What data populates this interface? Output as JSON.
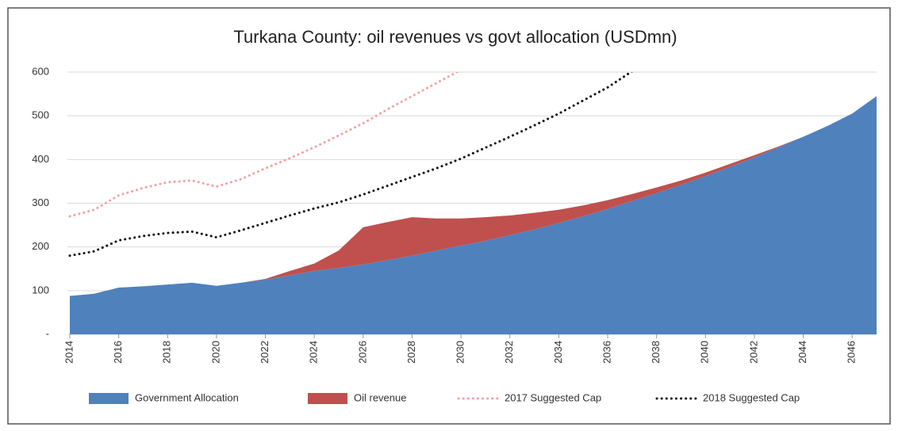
{
  "chart_data": {
    "type": "stacked_area_line",
    "title": "Turkana County: oil revenues vs govt allocation (USDmn)",
    "x": [
      2014,
      2015,
      2016,
      2017,
      2018,
      2019,
      2020,
      2021,
      2022,
      2023,
      2024,
      2025,
      2026,
      2027,
      2028,
      2029,
      2030,
      2031,
      2032,
      2033,
      2034,
      2035,
      2036,
      2037,
      2038,
      2039,
      2040,
      2041,
      2042,
      2043,
      2044,
      2045,
      2046,
      2047
    ],
    "xlim": [
      2014,
      2047
    ],
    "xticks": [
      2014,
      2016,
      2018,
      2020,
      2022,
      2024,
      2026,
      2028,
      2030,
      2032,
      2034,
      2036,
      2038,
      2040,
      2042,
      2044,
      2046
    ],
    "ylim": [
      0,
      600
    ],
    "yticks": [
      {
        "value": 0,
        "label": "-"
      },
      100,
      200,
      300,
      400,
      500,
      600
    ],
    "grid": true,
    "legend": "bottom",
    "series": [
      {
        "name": "Government Allocation",
        "kind": "area",
        "color": "#4f81bd",
        "values": [
          88,
          93,
          107,
          110,
          114,
          118,
          111,
          118,
          125,
          135,
          145,
          152,
          160,
          170,
          180,
          192,
          203,
          214,
          227,
          240,
          255,
          270,
          287,
          305,
          323,
          342,
          362,
          383,
          405,
          428,
          452,
          477,
          505,
          545
        ]
      },
      {
        "name": "Oil revenue",
        "kind": "area",
        "color": "#c0504d",
        "values": [
          0,
          0,
          0,
          0,
          0,
          0,
          0,
          0,
          2,
          10,
          17,
          40,
          85,
          87,
          88,
          73,
          62,
          54,
          45,
          38,
          30,
          25,
          20,
          16,
          13,
          10,
          8,
          7,
          5,
          2,
          0,
          0,
          0,
          0
        ]
      },
      {
        "name": "2017 Suggested Cap",
        "kind": "line",
        "color": "#f4a0a0",
        "values": [
          270,
          285,
          318,
          335,
          348,
          352,
          338,
          355,
          380,
          403,
          428,
          455,
          483,
          515,
          545,
          575,
          605,
          null,
          null,
          null,
          null,
          null,
          null,
          null,
          null,
          null,
          null,
          null,
          null,
          null,
          null,
          null,
          null,
          null
        ]
      },
      {
        "name": "2018 Suggested Cap",
        "kind": "line",
        "color": "#111111",
        "values": [
          180,
          190,
          215,
          225,
          232,
          235,
          222,
          238,
          255,
          272,
          288,
          302,
          320,
          340,
          360,
          380,
          402,
          427,
          452,
          478,
          505,
          535,
          565,
          602,
          null,
          null,
          null,
          null,
          null,
          null,
          null,
          null,
          null,
          null
        ]
      }
    ]
  }
}
